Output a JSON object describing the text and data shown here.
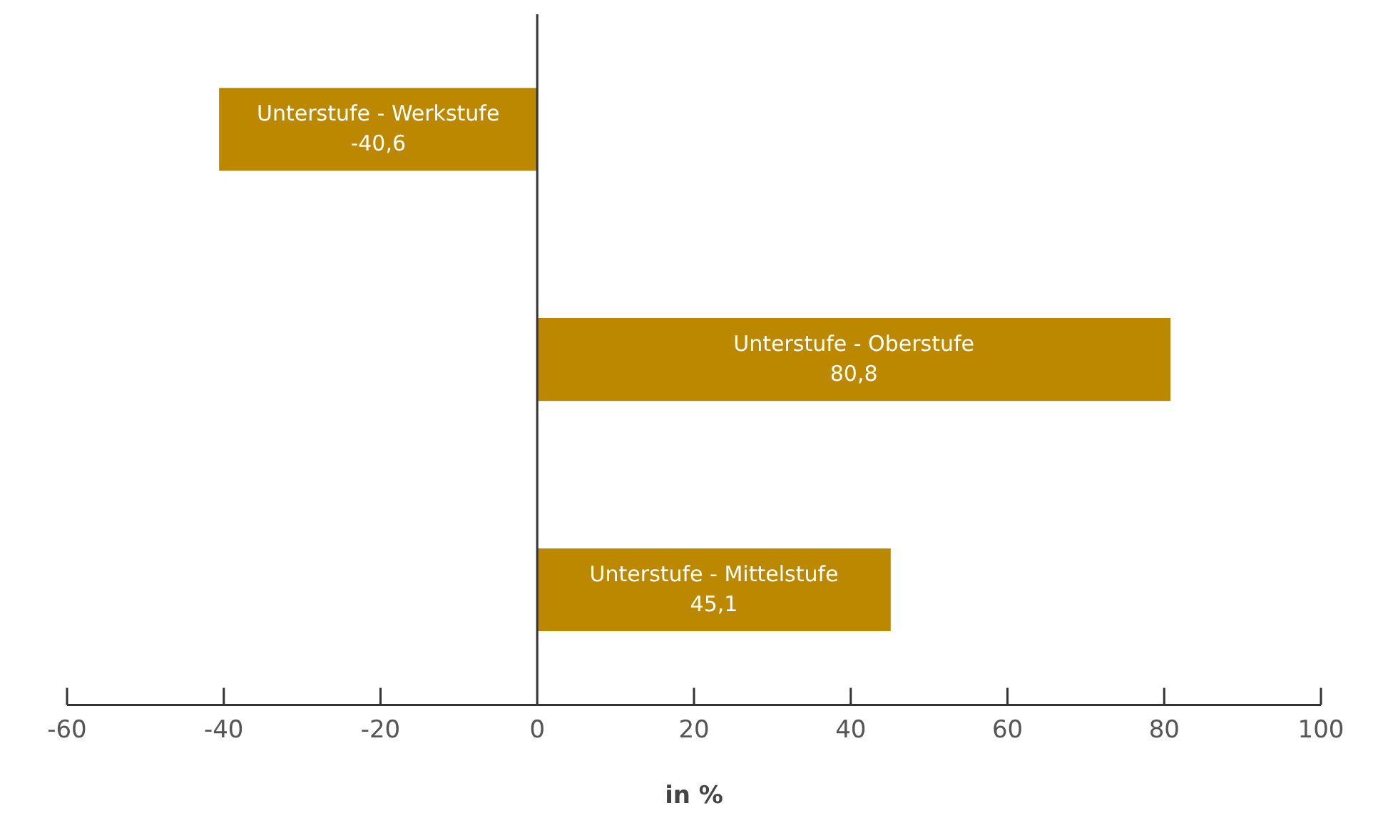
{
  "chart_data": {
    "type": "bar",
    "orientation": "horizontal",
    "xlabel": "in %",
    "categories": [
      "Unterstufe - Werkstufe",
      "Unterstufe - Oberstufe",
      "Unterstufe - Mittelstufe"
    ],
    "values": [
      -40.6,
      80.8,
      45.1
    ],
    "value_labels": [
      "-40,6",
      "80,8",
      "45,1"
    ],
    "color": "#bb8800",
    "xlim": [
      -60,
      100
    ],
    "xticks": [
      -60,
      -40,
      -20,
      0,
      20,
      40,
      60,
      80,
      100
    ],
    "legend": false
  }
}
